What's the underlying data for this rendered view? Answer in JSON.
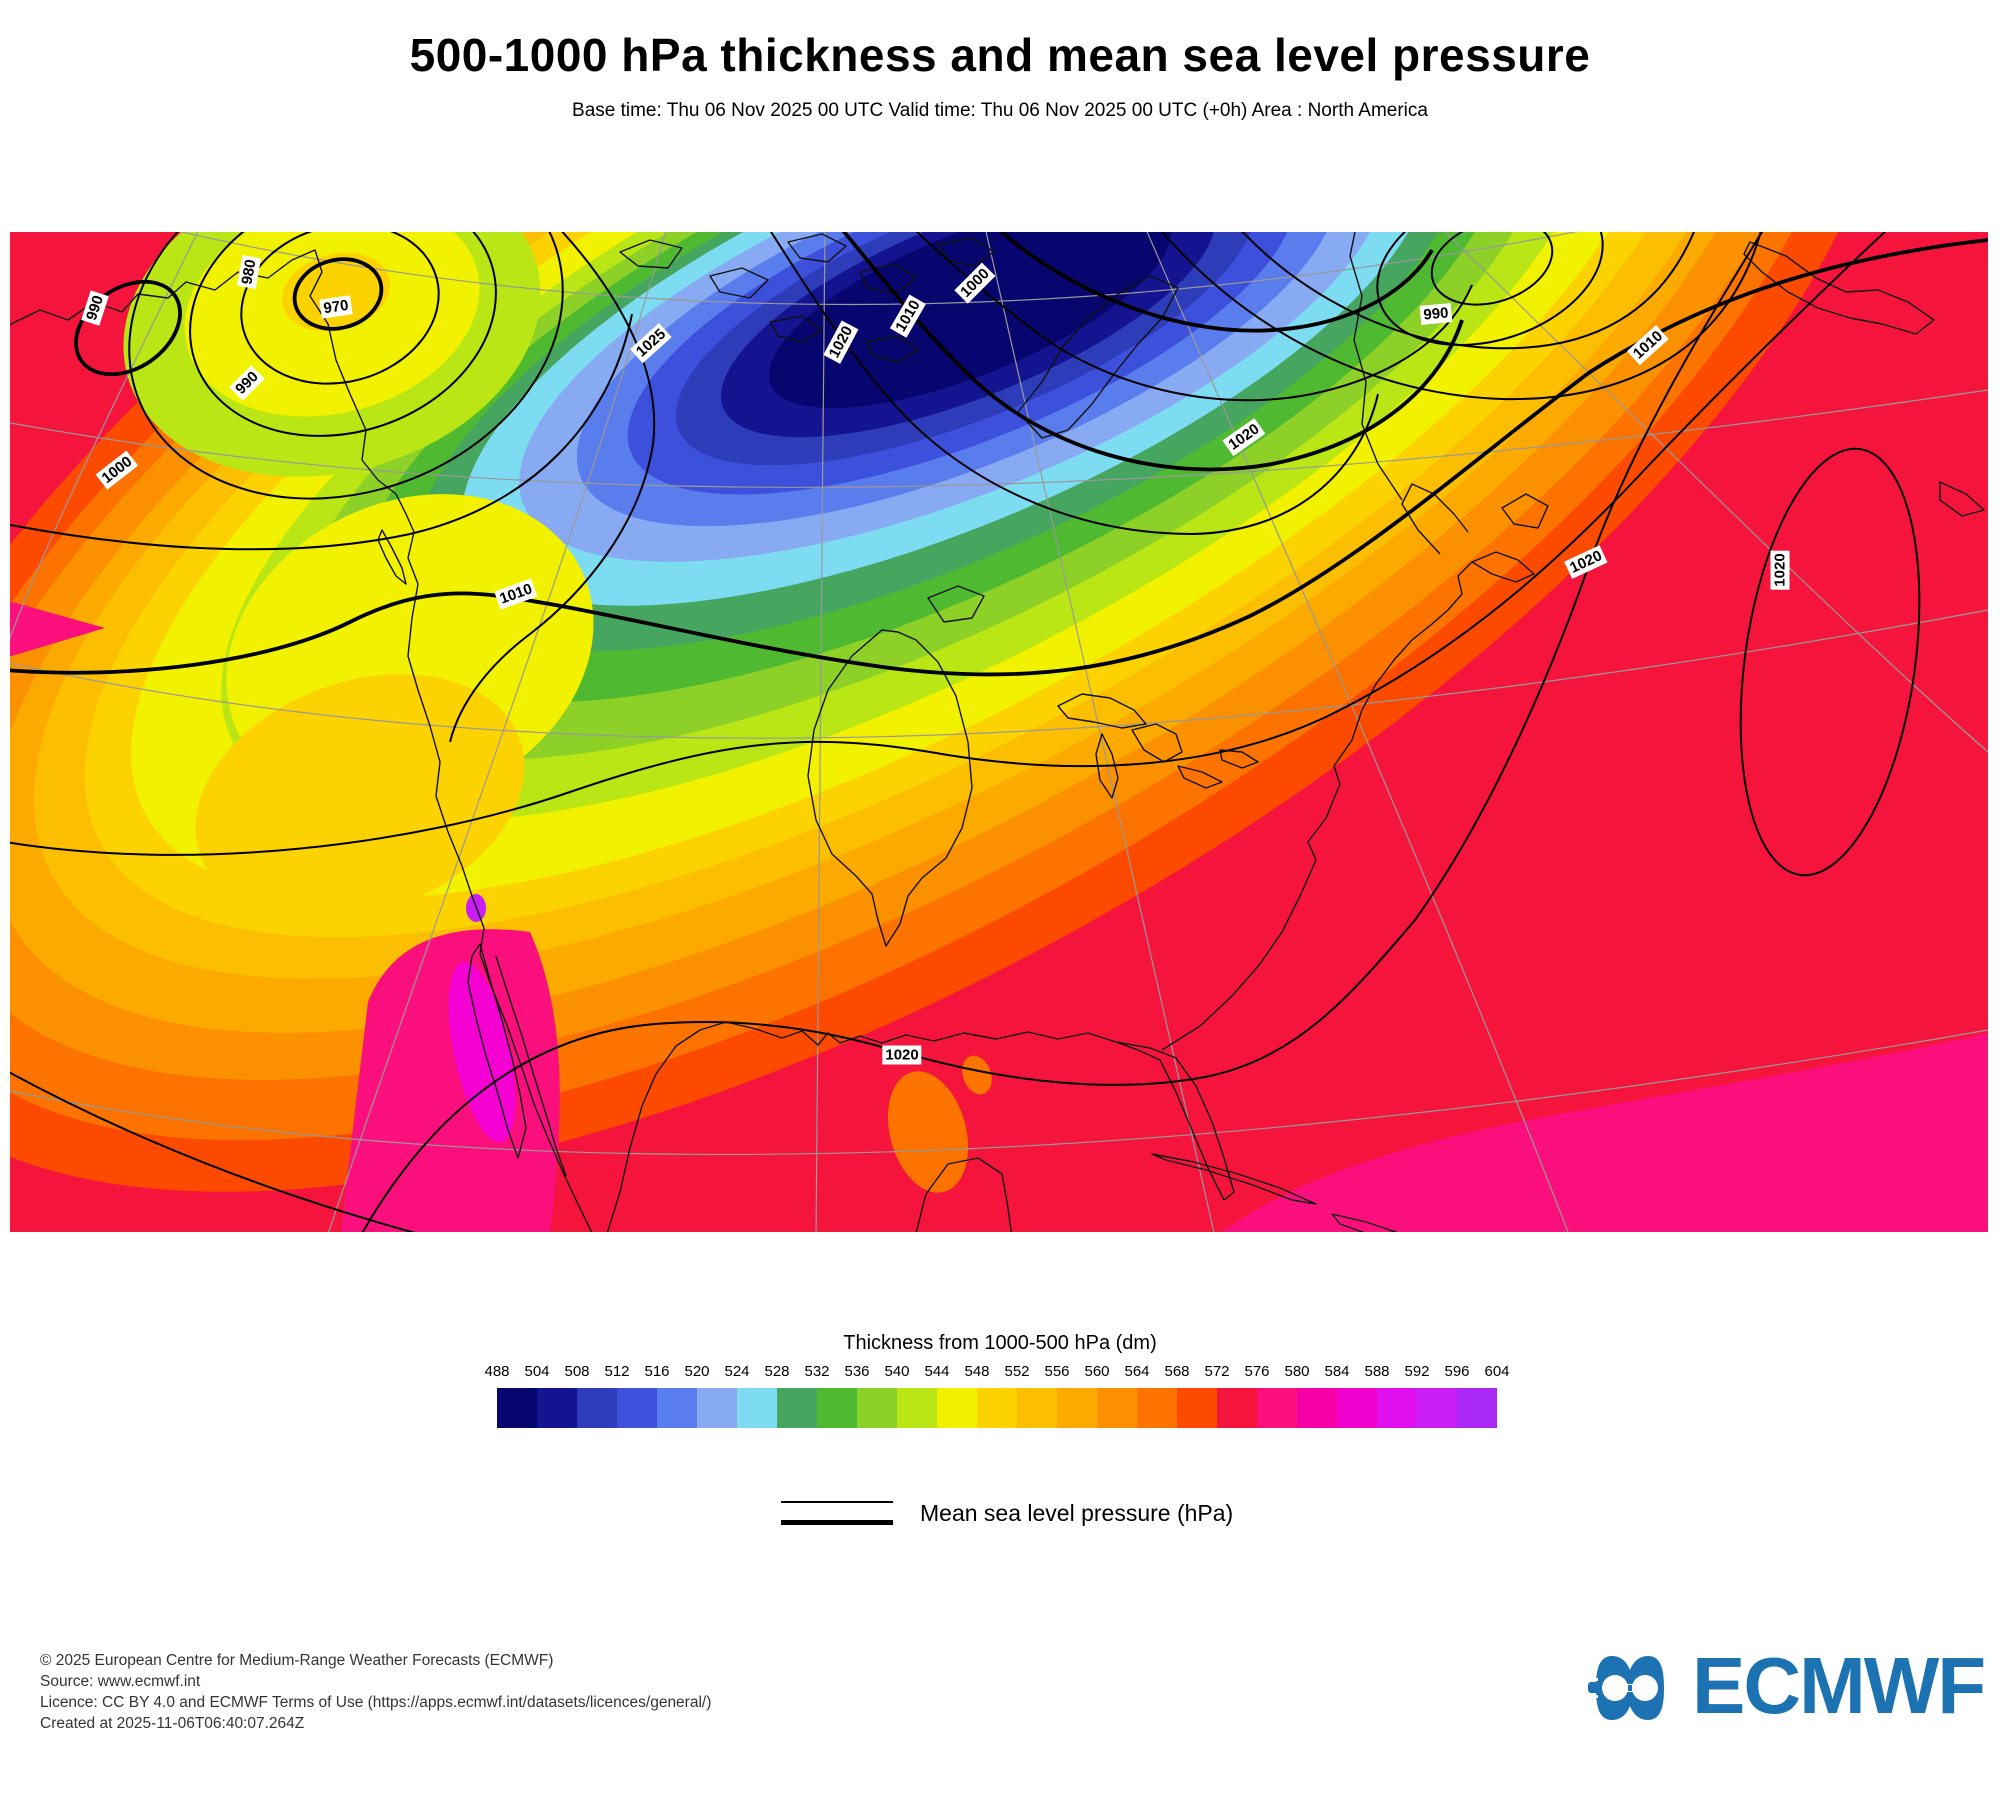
{
  "header": {
    "title": "500-1000 hPa thickness and mean sea level pressure",
    "subtitle": "Base time: Thu 06 Nov 2025 00 UTC Valid time: Thu 06 Nov 2025 00 UTC (+0h) Area : North America"
  },
  "chart_data": {
    "type": "heatmap",
    "title": "500-1000 hPa thickness and mean sea level pressure",
    "subtitle": "Base time: Thu 06 Nov 2025 00 UTC Valid time: Thu 06 Nov 2025 00 UTC (+0h) Area : North America",
    "field": "Thickness from 1000-500 hPa",
    "units": "dm",
    "area": "North America",
    "scale_ticks": [
      488,
      504,
      508,
      512,
      516,
      520,
      524,
      528,
      532,
      536,
      540,
      544,
      548,
      552,
      556,
      560,
      564,
      568,
      572,
      576,
      580,
      584,
      588,
      592,
      596,
      604
    ],
    "scale_colors": [
      "#06066e",
      "#141491",
      "#2d3cb9",
      "#3c50dc",
      "#5a7dee",
      "#87aaf2",
      "#7ddcf2",
      "#46a55f",
      "#50b932",
      "#8cd028",
      "#b9e614",
      "#f2f200",
      "#fcd200",
      "#fcbe00",
      "#fcaa00",
      "#fc9100",
      "#fc7300",
      "#fc4b00",
      "#f5143c",
      "#fa0f7d",
      "#f500a5",
      "#f000cd",
      "#e10ff0",
      "#c81ef5",
      "#aa28f5"
    ],
    "overlay_series": "Mean sea level pressure (hPa)",
    "msl_contour_labels": [
      {
        "value": "990",
        "x_pct": 4.3,
        "y_pct": 7.6,
        "rot": -72
      },
      {
        "value": "980",
        "x_pct": 12.1,
        "y_pct": 4.0,
        "rot": -80
      },
      {
        "value": "970",
        "x_pct": 16.5,
        "y_pct": 7.5,
        "rot": -8
      },
      {
        "value": "990",
        "x_pct": 12.0,
        "y_pct": 15.1,
        "rot": -45
      },
      {
        "value": "1000",
        "x_pct": 5.4,
        "y_pct": 23.8,
        "rot": -38
      },
      {
        "value": "1010",
        "x_pct": 25.6,
        "y_pct": 36.2,
        "rot": -20
      },
      {
        "value": "1025",
        "x_pct": 32.4,
        "y_pct": 11.1,
        "rot": -42
      },
      {
        "value": "1020",
        "x_pct": 42.0,
        "y_pct": 11.0,
        "rot": -62
      },
      {
        "value": "1010",
        "x_pct": 45.4,
        "y_pct": 8.4,
        "rot": -60
      },
      {
        "value": "1000",
        "x_pct": 48.8,
        "y_pct": 5.1,
        "rot": -45
      },
      {
        "value": "990",
        "x_pct": 72.1,
        "y_pct": 8.2,
        "rot": -5
      },
      {
        "value": "1020",
        "x_pct": 62.4,
        "y_pct": 20.5,
        "rot": -35
      },
      {
        "value": "1010",
        "x_pct": 82.8,
        "y_pct": 11.3,
        "rot": -42
      },
      {
        "value": "1020",
        "x_pct": 79.7,
        "y_pct": 33.0,
        "rot": -25
      },
      {
        "value": "1020",
        "x_pct": 89.5,
        "y_pct": 33.8,
        "rot": -90
      },
      {
        "value": "1020",
        "x_pct": 45.1,
        "y_pct": 82.3,
        "rot": 0
      }
    ]
  },
  "colorbar": {
    "title": "Thickness from 1000-500 hPa (dm)"
  },
  "legend": {
    "label": "Mean sea level pressure (hPa)"
  },
  "footer": {
    "line1": "© 2025 European Centre for Medium-Range Weather Forecasts (ECMWF)",
    "line2": "Source: www.ecmwf.int",
    "line3": "Licence: CC BY 4.0 and ECMWF Terms of Use (https://apps.ecmwf.int/datasets/licences/general/)",
    "line4": "Created at 2025-11-06T06:40:07.264Z"
  },
  "logo": {
    "text": "ECMWF",
    "color": "#1d72b2"
  }
}
